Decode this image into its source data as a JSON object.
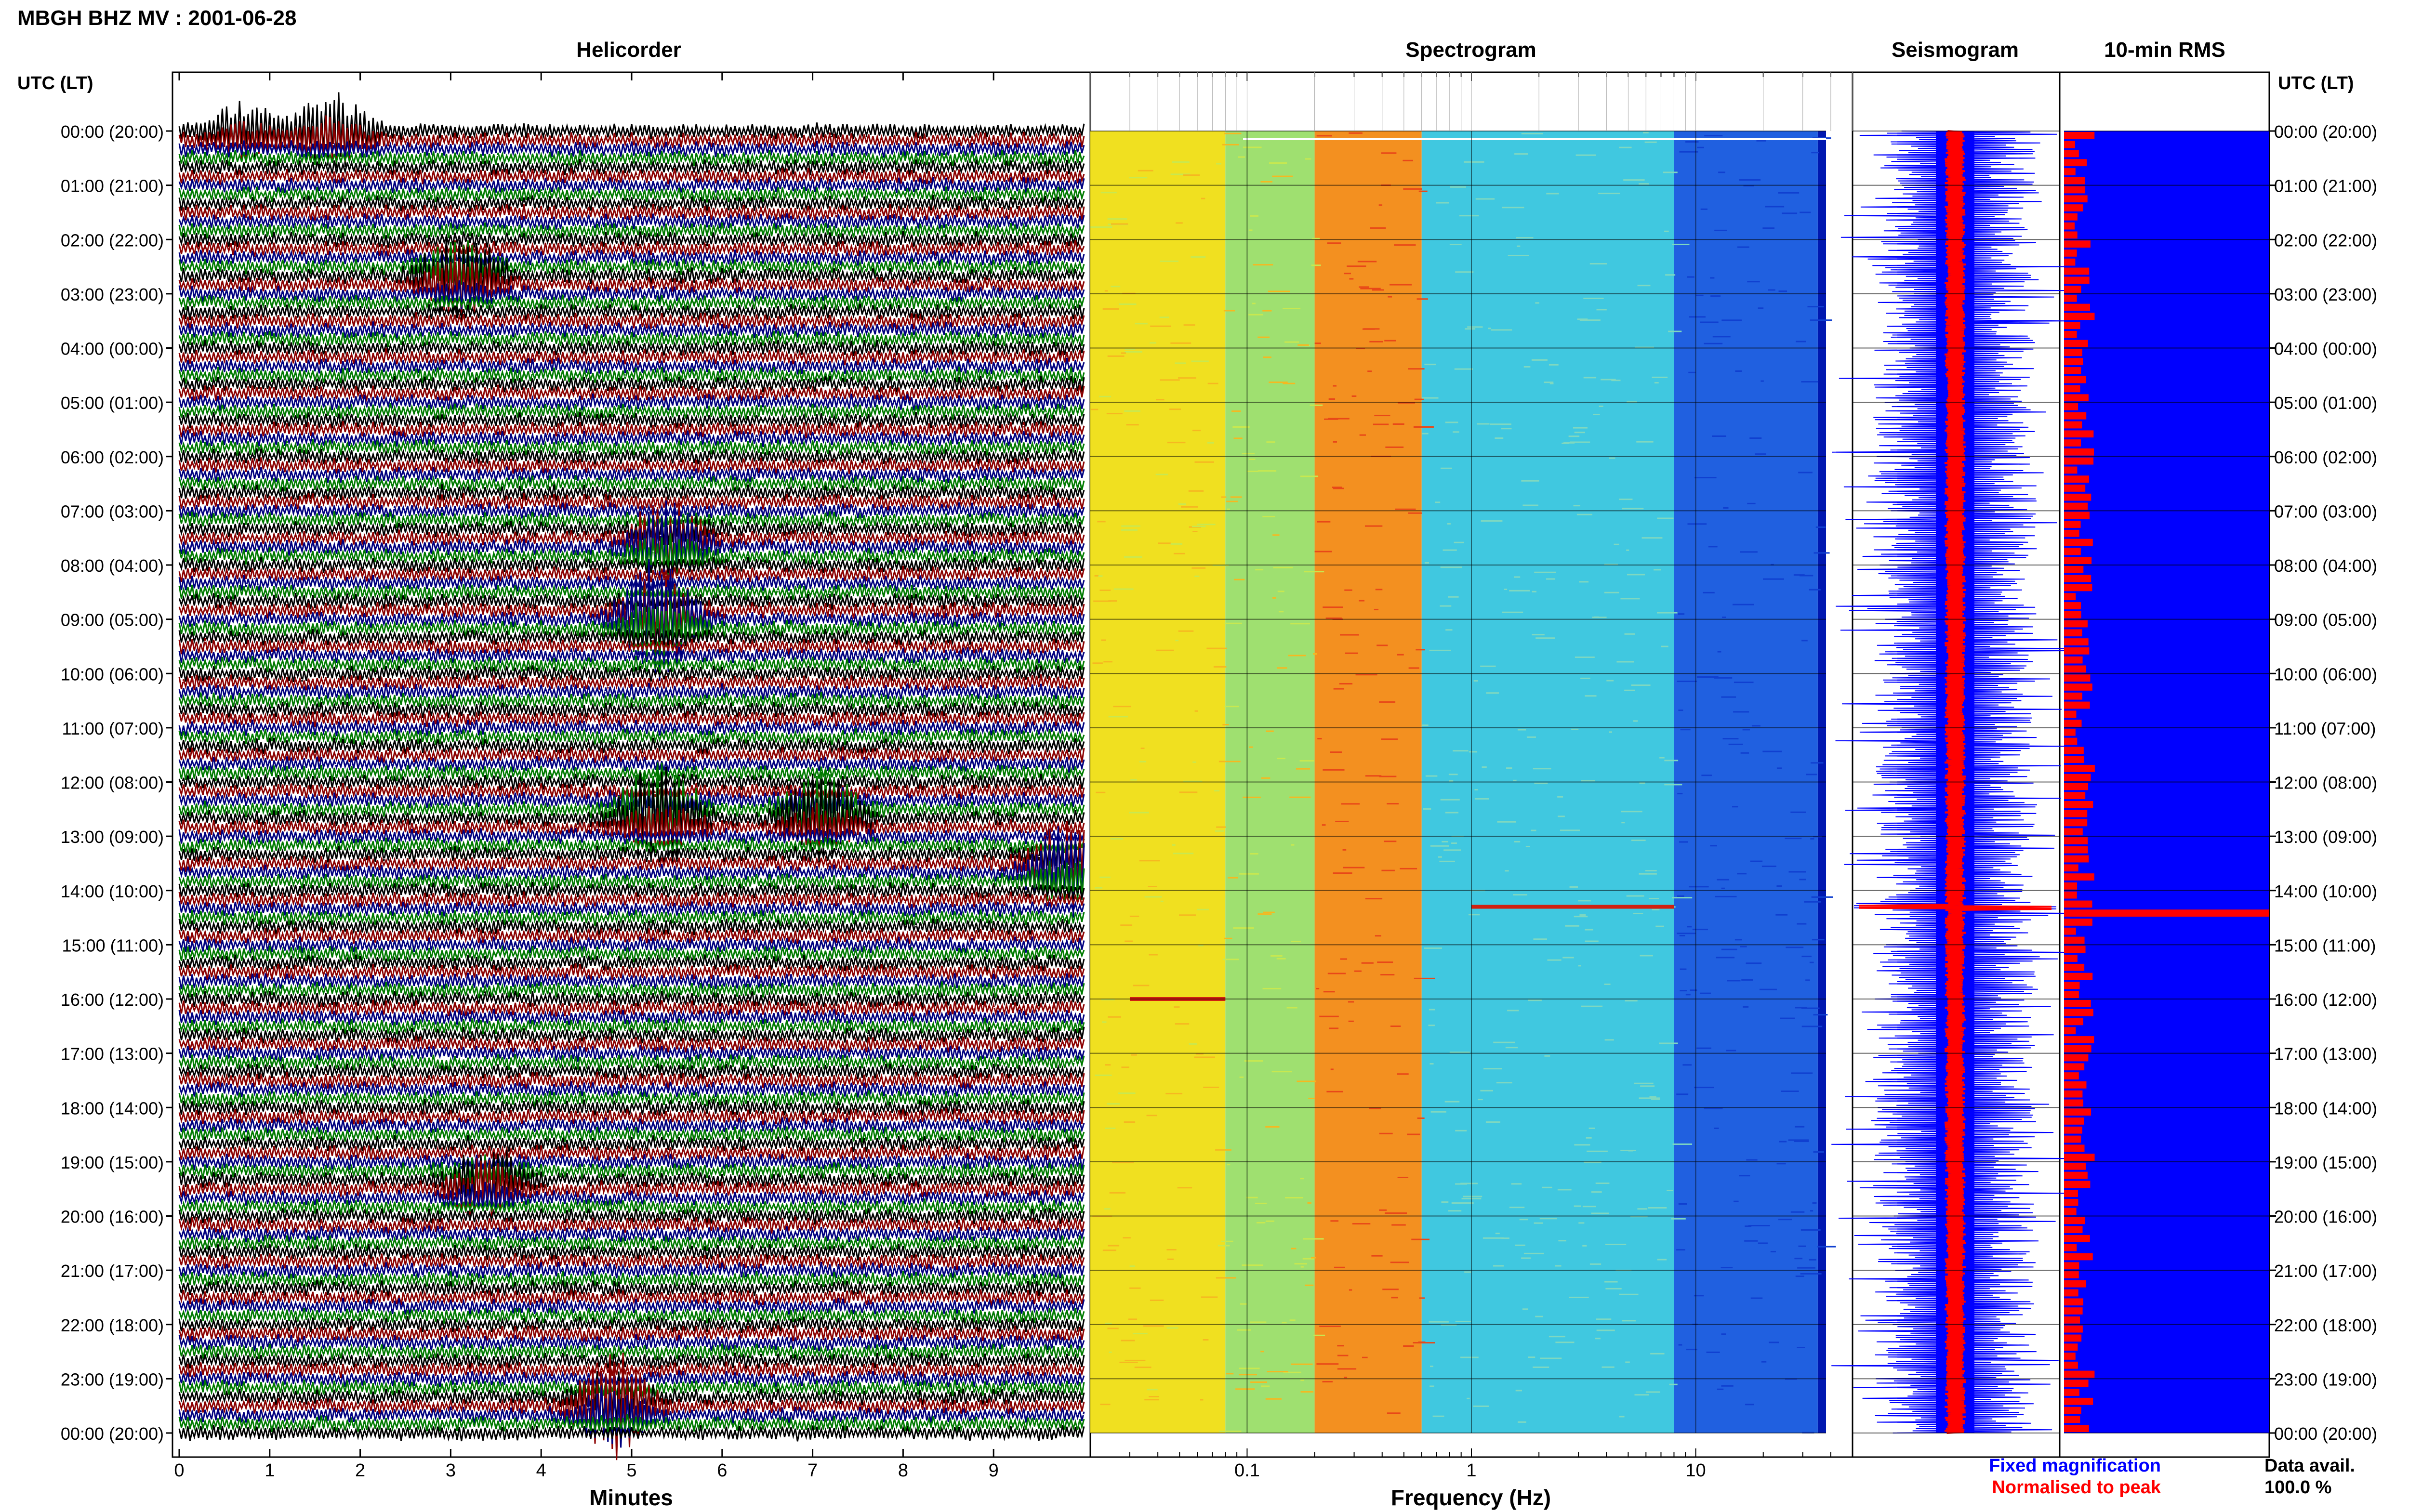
{
  "header": {
    "station_title": "MBGH BHZ MV : 2001-06-28",
    "utc_label_left": "UTC (LT)",
    "utc_label_right": "UTC (LT)"
  },
  "hour_labels": [
    "00:00 (20:00)",
    "01:00 (21:00)",
    "02:00 (22:00)",
    "03:00 (23:00)",
    "04:00 (00:00)",
    "05:00 (01:00)",
    "06:00 (02:00)",
    "07:00 (03:00)",
    "08:00 (04:00)",
    "09:00 (05:00)",
    "10:00 (06:00)",
    "11:00 (07:00)",
    "12:00 (08:00)",
    "13:00 (09:00)",
    "14:00 (10:00)",
    "15:00 (11:00)",
    "16:00 (12:00)",
    "17:00 (13:00)",
    "18:00 (14:00)",
    "19:00 (15:00)",
    "20:00 (16:00)",
    "21:00 (17:00)",
    "22:00 (18:00)",
    "23:00 (19:00)",
    "00:00 (20:00)"
  ],
  "colors": {
    "trace_black": "#000000",
    "trace_red": "#8b0000",
    "trace_blue": "#00007f",
    "trace_green": "#007a00",
    "fixed_blue": "#0000ff",
    "peak_red": "#ff0000",
    "rms_bg": "#0000ff",
    "rms_bar": "#ff0000"
  },
  "chart_data": [
    {
      "type": "line",
      "title": "Helicorder",
      "xlabel": "Minutes",
      "ylabel": "",
      "xlim": [
        0,
        10
      ],
      "x_ticks": [
        "0",
        "1",
        "2",
        "3",
        "4",
        "5",
        "6",
        "7",
        "8",
        "9"
      ],
      "rows_per_hour": 6,
      "series_colors": [
        "black",
        "red",
        "blue",
        "green"
      ],
      "events": [
        {
          "hour": 0.0,
          "minute": 1.7,
          "color": "red",
          "amplitude": 3
        },
        {
          "hour": 0.0,
          "minute": 0.7,
          "color": "blue",
          "amplitude": 2
        },
        {
          "hour": 2.7,
          "minute": 3.1,
          "color": "green",
          "amplitude": 4
        },
        {
          "hour": 7.6,
          "minute": 5.4,
          "color": "red",
          "amplitude": 4
        },
        {
          "hour": 9.0,
          "minute": 5.3,
          "color": "red",
          "amplitude": 5
        },
        {
          "hour": 12.6,
          "minute": 5.3,
          "color": "red",
          "amplitude": 5
        },
        {
          "hour": 12.6,
          "minute": 7.1,
          "color": "red",
          "amplitude": 4
        },
        {
          "hour": 13.6,
          "minute": 9.8,
          "color": "green",
          "amplitude": 4
        },
        {
          "hour": 19.4,
          "minute": 3.4,
          "color": "red",
          "amplitude": 3
        },
        {
          "hour": 23.5,
          "minute": 4.8,
          "color": "black",
          "amplitude": 4
        }
      ]
    },
    {
      "type": "heatmap",
      "title": "Spectrogram",
      "xlabel": "Frequency (Hz)",
      "ylabel": "",
      "xscale": "log",
      "xlim": [
        0.02,
        50
      ],
      "x_ticks": [
        "0.1",
        "1",
        "10"
      ],
      "colormap": "jet",
      "bands": [
        {
          "freq_range": [
            0.02,
            0.08
          ],
          "level": "yellow"
        },
        {
          "freq_range": [
            0.08,
            0.2
          ],
          "level": "cyan-yellow"
        },
        {
          "freq_range": [
            0.2,
            0.6
          ],
          "level": "orange-red"
        },
        {
          "freq_range": [
            0.6,
            8
          ],
          "level": "cyan"
        },
        {
          "freq_range": [
            8,
            35
          ],
          "level": "blue"
        },
        {
          "freq_range": [
            35,
            50
          ],
          "level": "dark-blue"
        }
      ],
      "notable_events": [
        {
          "hour": 16.0,
          "freq_range": [
            0.03,
            0.08
          ],
          "level": "red"
        },
        {
          "hour": 14.3,
          "freq_range": [
            1,
            8
          ],
          "level": "red"
        }
      ]
    },
    {
      "type": "line",
      "title": "Seismogram",
      "series": [
        {
          "name": "Fixed magnification",
          "color": "blue"
        },
        {
          "name": "Normalised to peak",
          "color": "red"
        }
      ],
      "events": [
        {
          "hour": 14.3,
          "color": "red"
        }
      ]
    },
    {
      "type": "bar",
      "title": "10-min RMS",
      "orientation": "horizontal",
      "xlabel": "",
      "ylabel": "",
      "rows": 144,
      "peak": {
        "hour": 14.3,
        "value": 1.0
      },
      "typical_range": [
        0.05,
        0.15
      ],
      "data_avail_label": "Data avail.",
      "data_avail_value": "100.0 %"
    }
  ]
}
